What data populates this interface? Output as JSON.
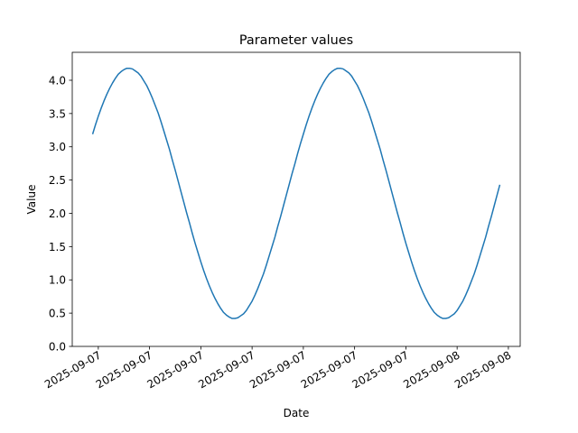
{
  "chart_data": {
    "type": "line",
    "title": "Parameter values",
    "xlabel": "Date",
    "ylabel": "Value",
    "color": "#1f77b4",
    "x": [
      0,
      1,
      2,
      3,
      4,
      5,
      6,
      7,
      8,
      9,
      10,
      11,
      12,
      13,
      14,
      15,
      16,
      17,
      18,
      19,
      20,
      21,
      22,
      23,
      24,
      25,
      26,
      27,
      28,
      29,
      30,
      31,
      32,
      33,
      34,
      35,
      36,
      37,
      38,
      39,
      40,
      41,
      42,
      43,
      44,
      45,
      46,
      47,
      48,
      49,
      50,
      51,
      52,
      53,
      54,
      55,
      56,
      57,
      58,
      59,
      60,
      61,
      62,
      63,
      64,
      65,
      66,
      67,
      68,
      69,
      70,
      71,
      72,
      73,
      74,
      75,
      76,
      77,
      78,
      79,
      80,
      81,
      82,
      83,
      84,
      85,
      86,
      87,
      88,
      89,
      90,
      91,
      92,
      93,
      94,
      95,
      96,
      97,
      98,
      99,
      100,
      101,
      102,
      103,
      104,
      105,
      106,
      107,
      108,
      109,
      110,
      111,
      112,
      113,
      114,
      115,
      116,
      117,
      118,
      119,
      120,
      121,
      122,
      123,
      124,
      125,
      126,
      127,
      128,
      129,
      130,
      131,
      132,
      133,
      134,
      135,
      136,
      137,
      138,
      139,
      140,
      141,
      142,
      143
    ],
    "values": [
      3.19,
      3.33,
      3.46,
      3.58,
      3.69,
      3.79,
      3.88,
      3.96,
      4.03,
      4.09,
      4.13,
      4.16,
      4.18,
      4.18,
      4.17,
      4.14,
      4.11,
      4.06,
      3.99,
      3.92,
      3.83,
      3.73,
      3.62,
      3.51,
      3.38,
      3.24,
      3.1,
      2.96,
      2.8,
      2.65,
      2.49,
      2.33,
      2.17,
      2.01,
      1.86,
      1.7,
      1.55,
      1.41,
      1.27,
      1.14,
      1.02,
      0.91,
      0.81,
      0.72,
      0.64,
      0.57,
      0.51,
      0.47,
      0.44,
      0.42,
      0.42,
      0.43,
      0.46,
      0.49,
      0.54,
      0.61,
      0.68,
      0.77,
      0.87,
      0.98,
      1.09,
      1.22,
      1.36,
      1.5,
      1.64,
      1.8,
      1.95,
      2.11,
      2.27,
      2.43,
      2.59,
      2.74,
      2.9,
      3.05,
      3.19,
      3.33,
      3.46,
      3.58,
      3.69,
      3.79,
      3.88,
      3.96,
      4.03,
      4.09,
      4.13,
      4.16,
      4.18,
      4.18,
      4.17,
      4.14,
      4.11,
      4.06,
      3.99,
      3.92,
      3.83,
      3.73,
      3.62,
      3.51,
      3.38,
      3.24,
      3.1,
      2.96,
      2.8,
      2.65,
      2.49,
      2.33,
      2.17,
      2.01,
      1.86,
      1.7,
      1.55,
      1.41,
      1.27,
      1.14,
      1.02,
      0.91,
      0.81,
      0.72,
      0.64,
      0.57,
      0.51,
      0.47,
      0.44,
      0.42,
      0.42,
      0.43,
      0.46,
      0.49,
      0.54,
      0.61,
      0.68,
      0.77,
      0.87,
      0.98,
      1.09,
      1.22,
      1.36,
      1.5,
      1.64,
      1.8,
      1.95,
      2.11,
      2.27,
      2.43
    ],
    "xlim": [
      -7.15,
      150.15
    ],
    "xticks": [
      {
        "value": 2,
        "label": "2025-09-07"
      },
      {
        "value": 20,
        "label": "2025-09-07"
      },
      {
        "value": 38,
        "label": "2025-09-07"
      },
      {
        "value": 56,
        "label": "2025-09-07"
      },
      {
        "value": 74,
        "label": "2025-09-07"
      },
      {
        "value": 92,
        "label": "2025-09-07"
      },
      {
        "value": 110,
        "label": "2025-09-07"
      },
      {
        "value": 128,
        "label": "2025-09-08"
      },
      {
        "value": 146,
        "label": "2025-09-08"
      }
    ],
    "ylim": [
      0,
      4.42
    ],
    "yticks": [
      {
        "value": 0,
        "label": "0.0"
      },
      {
        "value": 0.5,
        "label": "0.5"
      },
      {
        "value": 1,
        "label": "1.0"
      },
      {
        "value": 1.5,
        "label": "1.5"
      },
      {
        "value": 2,
        "label": "2.0"
      },
      {
        "value": 2.5,
        "label": "2.5"
      },
      {
        "value": 3,
        "label": "3.0"
      },
      {
        "value": 3.5,
        "label": "3.5"
      },
      {
        "value": 4,
        "label": "4.0"
      }
    ],
    "grid": false
  }
}
